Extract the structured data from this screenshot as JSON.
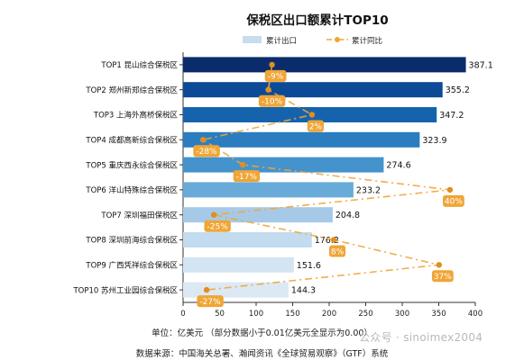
{
  "chart_data": {
    "type": "bar",
    "orientation": "horizontal",
    "title": "保税区出口额累计TOP10",
    "categories": [
      "TOP1 昆山综合保税区",
      "TOP2 郑州新郑综合保税区",
      "TOP3 上海外高桥保税区",
      "TOP4 成都高新综合保税区",
      "TOP5 重庆西永综合保税区",
      "TOP6 洋山特殊综合保税区",
      "TOP7 深圳福田保税区",
      "TOP8 深圳前海综合保税区",
      "TOP9 广西凭祥综合保税区",
      "TOP10 苏州工业园综合保税区"
    ],
    "series": [
      {
        "name": "累计出口",
        "type": "bar",
        "values": [
          387.1,
          355.2,
          347.2,
          323.9,
          274.6,
          233.2,
          204.8,
          176.2,
          151.6,
          144.3
        ],
        "value_labels": [
          "387.1",
          "355.2",
          "347.2",
          "323.9",
          "274.6",
          "233.2",
          "204.8",
          "176.2",
          "151.6",
          "144.3"
        ],
        "colors": [
          "#0a2c6b",
          "#0c4a97",
          "#1663ad",
          "#2b7dc0",
          "#4593cc",
          "#68abd9",
          "#a6c9e8",
          "#c3dbef",
          "#d3e4f3",
          "#dce9f5"
        ]
      },
      {
        "name": "累计同比",
        "type": "line",
        "values": [
          -9,
          -10,
          2,
          -28,
          -17,
          40,
          -25,
          8,
          37,
          -27
        ],
        "labels": [
          "-9%",
          "-10%",
          "2%",
          "-28%",
          "-17%",
          "40%",
          "-25%",
          "8%",
          "37%",
          "-27%"
        ],
        "line_x_reference_min": -30,
        "line_x_reference_max": 43,
        "color": "#f0a536"
      }
    ],
    "xlim": [
      0,
      400
    ],
    "xticks": [
      "0",
      "50",
      "100",
      "150",
      "200",
      "250",
      "300",
      "350",
      "400"
    ],
    "legend_position": "top-center",
    "grid": false
  },
  "footer": {
    "unit_text": "单位：亿美元  （部分数据小于0.01亿美元全显示为0.00）",
    "source_text": "数据来源：中国海关总署、瀚闻资讯《全球贸易观察》（GTF）系统",
    "watermark_text": "公众号 · sinoimex2004"
  }
}
